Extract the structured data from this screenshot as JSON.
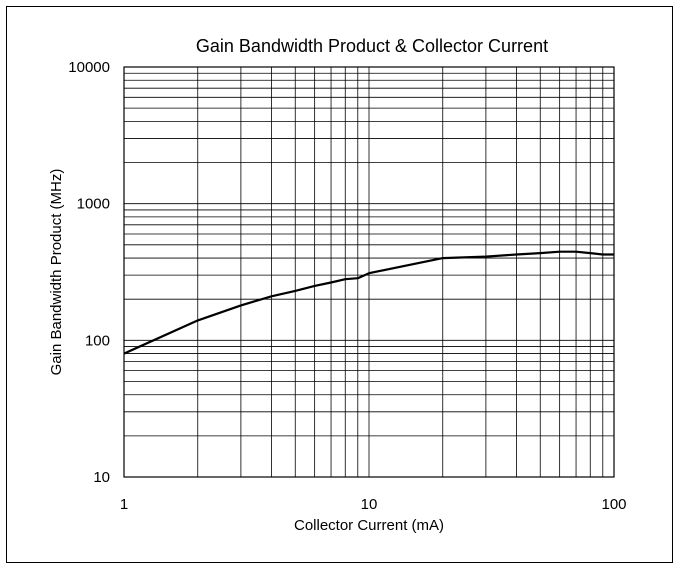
{
  "chart_data": {
    "type": "line",
    "title": "Gain Bandwidth Product & Collector Current",
    "xlabel": "Collector Current (mA)",
    "ylabel": "Gain Bandwidth Product (MHz)",
    "x_scale": "log",
    "y_scale": "log",
    "xlim": [
      1,
      100
    ],
    "ylim": [
      10,
      10000
    ],
    "x_ticks": [
      {
        "value": 1,
        "label": "1"
      },
      {
        "value": 10,
        "label": "10"
      },
      {
        "value": 100,
        "label": "100"
      }
    ],
    "y_ticks": [
      {
        "value": 10,
        "label": "10"
      },
      {
        "value": 100,
        "label": "100"
      },
      {
        "value": 1000,
        "label": "1000"
      },
      {
        "value": 10000,
        "label": "10000"
      }
    ],
    "grid": true,
    "legend": "none",
    "line_color": "#000000",
    "series": [
      {
        "x": [
          1,
          2,
          3,
          4,
          5,
          6,
          7,
          8,
          9,
          10,
          20,
          30,
          40,
          50,
          60,
          70,
          80,
          90,
          100
        ],
        "y": [
          80,
          140,
          180,
          210,
          230,
          250,
          265,
          280,
          285,
          310,
          400,
          410,
          425,
          435,
          445,
          445,
          435,
          425,
          425
        ]
      }
    ]
  }
}
